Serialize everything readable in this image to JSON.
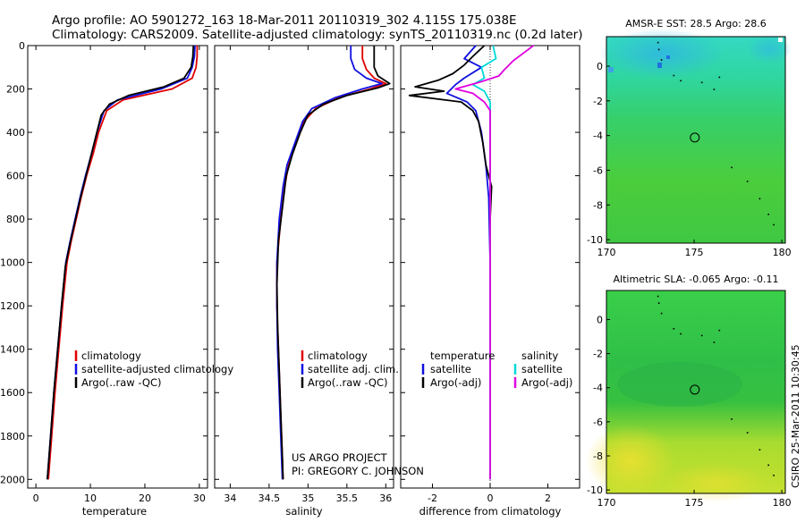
{
  "header": {
    "line1": "Argo profile: AO 5901272_163 18-Mar-2011 20110319_302 4.115S 175.038E",
    "line2": "Climatology: CARS2009. Satellite-adjusted climatology: synTS_20110319.nc (0.2d later)"
  },
  "colors": {
    "clim": "#e00000",
    "sat": "#1010e0",
    "argo": "#000000",
    "cyan": "#00d8d8",
    "magenta": "#e000e0"
  },
  "chart_data": [
    {
      "type": "line",
      "id": "temperature",
      "xlabel": "temperature",
      "xlim": [
        -1.5,
        31.5
      ],
      "ylim": [
        2040,
        0
      ],
      "xticks": [
        0,
        10,
        20,
        30
      ],
      "yticks": [
        0,
        200,
        400,
        600,
        800,
        1000,
        1200,
        1400,
        1600,
        1800,
        2000
      ],
      "legend": [
        "climatology",
        "satellite-adjusted climatology",
        "Argo(..raw -QC)"
      ],
      "series": [
        {
          "name": "climatology",
          "color": "clim",
          "points": [
            [
              29.6,
              0
            ],
            [
              29.6,
              50
            ],
            [
              29.4,
              100
            ],
            [
              28.7,
              150
            ],
            [
              25,
              200
            ],
            [
              16,
              250
            ],
            [
              13,
              300
            ],
            [
              11.5,
              400
            ],
            [
              10.5,
              500
            ],
            [
              9.3,
              600
            ],
            [
              8.3,
              700
            ],
            [
              7.4,
              800
            ],
            [
              6.5,
              900
            ],
            [
              5.7,
              1000
            ],
            [
              4.9,
              1200
            ],
            [
              4.2,
              1400
            ],
            [
              3.5,
              1600
            ],
            [
              2.9,
              1800
            ],
            [
              2.3,
              2000
            ]
          ]
        },
        {
          "name": "satellite-adjusted climatology",
          "color": "sat",
          "points": [
            [
              29.2,
              0
            ],
            [
              29.1,
              50
            ],
            [
              28.7,
              100
            ],
            [
              27.8,
              150
            ],
            [
              23,
              200
            ],
            [
              15,
              250
            ],
            [
              12.5,
              300
            ],
            [
              11.2,
              400
            ],
            [
              10.2,
              500
            ],
            [
              9.1,
              600
            ],
            [
              8.1,
              700
            ],
            [
              7.2,
              800
            ],
            [
              6.3,
              900
            ],
            [
              5.5,
              1000
            ],
            [
              4.7,
              1200
            ],
            [
              4,
              1400
            ],
            [
              3.3,
              1600
            ],
            [
              2.7,
              1800
            ],
            [
              2.1,
              2000
            ]
          ]
        },
        {
          "name": "Argo(..raw -QC)",
          "color": "argo",
          "points": [
            [
              28.9,
              0
            ],
            [
              28.8,
              50
            ],
            [
              28.5,
              100
            ],
            [
              27.2,
              150
            ],
            [
              23.5,
              190
            ],
            [
              17,
              230
            ],
            [
              13.5,
              270
            ],
            [
              12,
              320
            ],
            [
              11,
              420
            ],
            [
              10,
              520
            ],
            [
              9,
              620
            ],
            [
              8,
              720
            ],
            [
              7.1,
              820
            ],
            [
              6.2,
              920
            ],
            [
              5.4,
              1020
            ],
            [
              4.7,
              1200
            ],
            [
              4,
              1400
            ],
            [
              3.3,
              1600
            ],
            [
              2.7,
              1800
            ],
            [
              2.1,
              2000
            ]
          ]
        }
      ]
    },
    {
      "type": "line",
      "id": "salinity",
      "xlabel": "salinity",
      "xlim": [
        33.8,
        36.1
      ],
      "ylim": [
        2040,
        0
      ],
      "xticks": [
        34,
        34.5,
        35,
        35.5,
        36
      ],
      "legend": [
        "climatology",
        "satellite adj. clim.",
        "Argo(..raw -QC)"
      ],
      "series": [
        {
          "name": "climatology",
          "color": "clim",
          "points": [
            [
              35.7,
              0
            ],
            [
              35.7,
              60
            ],
            [
              35.75,
              110
            ],
            [
              35.85,
              150
            ],
            [
              36,
              175
            ],
            [
              35.8,
              200
            ],
            [
              35.4,
              240
            ],
            [
              35.1,
              290
            ],
            [
              34.95,
              350
            ],
            [
              34.85,
              450
            ],
            [
              34.75,
              550
            ],
            [
              34.7,
              650
            ],
            [
              34.65,
              800
            ],
            [
              34.6,
              1000
            ],
            [
              34.6,
              1200
            ],
            [
              34.62,
              1400
            ],
            [
              34.64,
              1600
            ],
            [
              34.66,
              1800
            ],
            [
              34.68,
              2000
            ]
          ]
        },
        {
          "name": "satellite adj. clim.",
          "color": "sat",
          "points": [
            [
              35.55,
              0
            ],
            [
              35.55,
              60
            ],
            [
              35.6,
              110
            ],
            [
              35.75,
              150
            ],
            [
              35.95,
              175
            ],
            [
              35.7,
              200
            ],
            [
              35.35,
              240
            ],
            [
              35.05,
              290
            ],
            [
              34.93,
              350
            ],
            [
              34.83,
              450
            ],
            [
              34.73,
              550
            ],
            [
              34.68,
              650
            ],
            [
              34.63,
              800
            ],
            [
              34.6,
              1000
            ],
            [
              34.6,
              1200
            ],
            [
              34.61,
              1400
            ],
            [
              34.63,
              1600
            ],
            [
              34.65,
              1800
            ],
            [
              34.67,
              2000
            ]
          ]
        },
        {
          "name": "Argo(..raw -QC)",
          "color": "argo",
          "points": [
            [
              35.85,
              0
            ],
            [
              35.85,
              60
            ],
            [
              35.85,
              100
            ],
            [
              35.9,
              140
            ],
            [
              36.05,
              175
            ],
            [
              35.9,
              195
            ],
            [
              35.5,
              230
            ],
            [
              35.2,
              270
            ],
            [
              35,
              320
            ],
            [
              34.9,
              400
            ],
            [
              34.8,
              500
            ],
            [
              34.72,
              600
            ],
            [
              34.67,
              750
            ],
            [
              34.62,
              900
            ],
            [
              34.6,
              1100
            ],
            [
              34.61,
              1300
            ],
            [
              34.63,
              1500
            ],
            [
              34.65,
              1700
            ],
            [
              34.67,
              1900
            ],
            [
              34.68,
              2000
            ]
          ]
        }
      ]
    },
    {
      "type": "line",
      "id": "difference",
      "xlabel": "difference from climatology",
      "xlim": [
        -3.1,
        3.1
      ],
      "ylim": [
        2040,
        0
      ],
      "xticks": [
        -2,
        0,
        2
      ],
      "legend_temperature_title": "temperature",
      "legend_salinity_title": "salinity",
      "legend_left": [
        "satellite",
        "Argo(-adj)"
      ],
      "legend_right": [
        "satellite",
        "Argo(-adj)"
      ],
      "series": [
        {
          "name": "temperature satellite",
          "color": "sat",
          "points": [
            [
              -0.5,
              0
            ],
            [
              -0.9,
              60
            ],
            [
              -0.3,
              100
            ],
            [
              -0.9,
              150
            ],
            [
              -1.2,
              180
            ],
            [
              -1.5,
              220
            ],
            [
              -0.8,
              260
            ],
            [
              -0.5,
              300
            ],
            [
              -0.3,
              400
            ],
            [
              -0.15,
              550
            ],
            [
              -0.05,
              700
            ],
            [
              0,
              1000
            ],
            [
              0,
              1500
            ],
            [
              0,
              2000
            ]
          ]
        },
        {
          "name": "temperature Argo(-adj)",
          "color": "argo",
          "points": [
            [
              -0.2,
              0
            ],
            [
              -0.6,
              50
            ],
            [
              -0.9,
              90
            ],
            [
              -1.3,
              130
            ],
            [
              -1.8,
              160
            ],
            [
              -2.6,
              190
            ],
            [
              -1.6,
              210
            ],
            [
              -2.8,
              230
            ],
            [
              -1.0,
              260
            ],
            [
              -0.6,
              300
            ],
            [
              -0.4,
              350
            ],
            [
              -0.25,
              450
            ],
            [
              -0.15,
              550
            ],
            [
              0.05,
              650
            ],
            [
              0,
              800
            ],
            [
              0,
              1200
            ],
            [
              0,
              1600
            ],
            [
              0,
              2000
            ]
          ]
        },
        {
          "name": "salinity satellite",
          "color": "cyan",
          "points": [
            [
              0.1,
              0
            ],
            [
              0.2,
              60
            ],
            [
              -0.3,
              100
            ],
            [
              -0.2,
              150
            ],
            [
              -0.6,
              180
            ],
            [
              -0.2,
              210
            ],
            [
              0,
              260
            ],
            [
              0,
              400
            ],
            [
              0,
              1000
            ],
            [
              0,
              1500
            ],
            [
              0,
              2000
            ]
          ]
        },
        {
          "name": "salinity Argo(-adj)",
          "color": "magenta",
          "points": [
            [
              1.5,
              0
            ],
            [
              1.2,
              30
            ],
            [
              0.8,
              70
            ],
            [
              0.5,
              110
            ],
            [
              0.3,
              140
            ],
            [
              -0.4,
              170
            ],
            [
              -1.2,
              200
            ],
            [
              -0.6,
              220
            ],
            [
              -0.2,
              260
            ],
            [
              0,
              300
            ],
            [
              0,
              500
            ],
            [
              0,
              1000
            ],
            [
              0,
              2000
            ]
          ]
        }
      ]
    },
    {
      "type": "heatmap",
      "id": "sst-map",
      "title": "AMSR-E SST: 28.5 Argo: 28.6",
      "xlim": [
        170,
        180.2
      ],
      "ylim": [
        -10.2,
        1.7
      ],
      "xticks": [
        170,
        175,
        180
      ],
      "yticks": [
        0,
        -2,
        -4,
        -6,
        -8,
        -10
      ],
      "float_position": {
        "lon": 175.038,
        "lat": -4.115
      }
    },
    {
      "type": "heatmap",
      "id": "sla-map",
      "title": "Altimetric SLA: -0.065 Argo: -0.11",
      "xlim": [
        170,
        180.2
      ],
      "ylim": [
        -10.2,
        1.7
      ],
      "xticks": [
        170,
        175,
        180
      ],
      "yticks": [
        0,
        -2,
        -4,
        -6,
        -8,
        -10
      ],
      "float_position": {
        "lon": 175.038,
        "lat": -4.115
      }
    }
  ],
  "annotations": {
    "project": "US ARGO PROJECT",
    "pi": "PI: GREGORY C. JOHNSON",
    "stamp": "CSIRO 25-Mar-2011 10:30:45"
  }
}
